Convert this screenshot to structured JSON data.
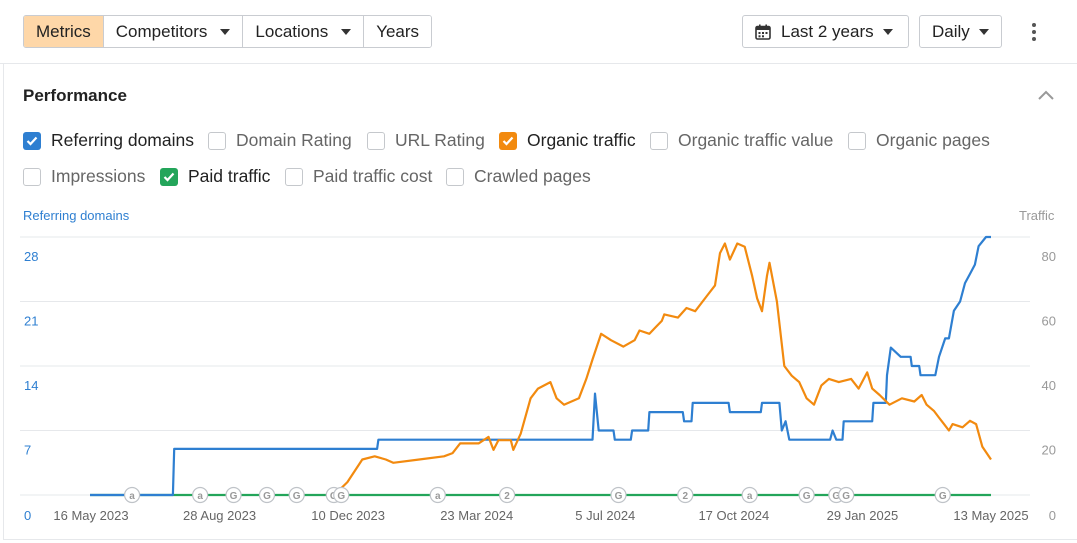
{
  "toolbar": {
    "tabs": [
      {
        "label": "Metrics",
        "active": true,
        "dropdown": false
      },
      {
        "label": "Competitors",
        "active": false,
        "dropdown": true
      },
      {
        "label": "Locations",
        "active": false,
        "dropdown": true
      },
      {
        "label": "Years",
        "active": false,
        "dropdown": false
      }
    ],
    "date_range": "Last 2 years",
    "granularity": "Daily",
    "more_icon": "kebab-menu-icon"
  },
  "section": {
    "title": "Performance",
    "collapse_icon": "chevron-up-icon"
  },
  "metrics": [
    {
      "label": "Referring domains",
      "checked": true,
      "color": "#2e7fd1"
    },
    {
      "label": "Domain Rating",
      "checked": false
    },
    {
      "label": "URL Rating",
      "checked": false
    },
    {
      "label": "Organic traffic",
      "checked": true,
      "color": "#f28a0f"
    },
    {
      "label": "Organic traffic value",
      "checked": false
    },
    {
      "label": "Organic pages",
      "checked": false
    },
    {
      "label": "Impressions",
      "checked": false
    },
    {
      "label": "Paid traffic",
      "checked": true,
      "color": "#23a55a"
    },
    {
      "label": "Paid traffic cost",
      "checked": false
    },
    {
      "label": "Crawled pages",
      "checked": false
    }
  ],
  "chart_data": {
    "type": "line",
    "left_axis_label": "Referring domains",
    "right_axis_label": "Traffic",
    "left_ticks": [
      0,
      7,
      14,
      21,
      28
    ],
    "right_ticks": [
      0,
      20,
      40,
      60,
      80
    ],
    "left_ylim": [
      0,
      28
    ],
    "right_ylim": [
      0,
      80
    ],
    "x_tick_labels": [
      "16 May 2023",
      "28 Aug 2023",
      "10 Dec 2023",
      "23 Mar 2024",
      "5 Jul 2024",
      "17 Oct 2024",
      "29 Jan 2025",
      "13 May 2025"
    ],
    "x_range": [
      "2023-05-16",
      "2025-05-13"
    ],
    "grid": true,
    "colors": {
      "referring_domains": "#2e7fd1",
      "organic_traffic": "#f28a0f",
      "paid_traffic": "#23a55a",
      "left_axis": "#2e7fd1",
      "right_axis": "#999999"
    },
    "series": [
      {
        "name": "Referring domains",
        "axis": "left",
        "color": "#2e7fd1",
        "points": [
          [
            "2023-05-16",
            0
          ],
          [
            "2023-07-22",
            0
          ],
          [
            "2023-07-23",
            5
          ],
          [
            "2024-01-03",
            5
          ],
          [
            "2024-01-04",
            6
          ],
          [
            "2024-06-25",
            6
          ],
          [
            "2024-06-27",
            11
          ],
          [
            "2024-06-30",
            7
          ],
          [
            "2024-07-12",
            7
          ],
          [
            "2024-07-13",
            6
          ],
          [
            "2024-07-26",
            6
          ],
          [
            "2024-07-27",
            7
          ],
          [
            "2024-08-09",
            7
          ],
          [
            "2024-08-10",
            9
          ],
          [
            "2024-09-06",
            9
          ],
          [
            "2024-09-07",
            8
          ],
          [
            "2024-09-13",
            8
          ],
          [
            "2024-09-14",
            10
          ],
          [
            "2024-10-13",
            10
          ],
          [
            "2024-10-14",
            9
          ],
          [
            "2024-11-08",
            9
          ],
          [
            "2024-11-09",
            10
          ],
          [
            "2024-11-23",
            10
          ],
          [
            "2024-11-25",
            7
          ],
          [
            "2024-11-28",
            8
          ],
          [
            "2024-12-01",
            6
          ],
          [
            "2025-01-03",
            6
          ],
          [
            "2025-01-05",
            7
          ],
          [
            "2025-01-08",
            6
          ],
          [
            "2025-01-13",
            6
          ],
          [
            "2025-01-14",
            8
          ],
          [
            "2025-02-06",
            8
          ],
          [
            "2025-02-07",
            10
          ],
          [
            "2025-02-17",
            10
          ],
          [
            "2025-02-18",
            13
          ],
          [
            "2025-02-21",
            16
          ],
          [
            "2025-03-01",
            15
          ],
          [
            "2025-03-09",
            15
          ],
          [
            "2025-03-10",
            14
          ],
          [
            "2025-03-16",
            14
          ],
          [
            "2025-03-17",
            13
          ],
          [
            "2025-03-29",
            13
          ],
          [
            "2025-04-01",
            15
          ],
          [
            "2025-04-06",
            17
          ],
          [
            "2025-04-09",
            17
          ],
          [
            "2025-04-13",
            20
          ],
          [
            "2025-04-18",
            21
          ],
          [
            "2025-04-22",
            23
          ],
          [
            "2025-04-26",
            24
          ],
          [
            "2025-04-30",
            25
          ],
          [
            "2025-05-03",
            27
          ],
          [
            "2025-05-09",
            28
          ],
          [
            "2025-05-13",
            28
          ]
        ]
      },
      {
        "name": "Organic traffic",
        "axis": "right",
        "color": "#f28a0f",
        "points": [
          [
            "2023-11-24",
            0
          ],
          [
            "2023-12-02",
            1
          ],
          [
            "2023-12-10",
            4
          ],
          [
            "2023-12-22",
            11
          ],
          [
            "2024-01-01",
            12
          ],
          [
            "2024-01-10",
            11
          ],
          [
            "2024-01-16",
            10
          ],
          [
            "2024-02-06",
            11
          ],
          [
            "2024-02-26",
            12
          ],
          [
            "2024-03-04",
            13
          ],
          [
            "2024-03-10",
            16
          ],
          [
            "2024-03-25",
            16
          ],
          [
            "2024-04-02",
            18
          ],
          [
            "2024-04-06",
            14
          ],
          [
            "2024-04-10",
            17
          ],
          [
            "2024-04-20",
            17
          ],
          [
            "2024-04-22",
            14
          ],
          [
            "2024-04-28",
            19
          ],
          [
            "2024-05-06",
            30
          ],
          [
            "2024-05-12",
            33
          ],
          [
            "2024-05-22",
            35
          ],
          [
            "2024-05-27",
            30
          ],
          [
            "2024-06-02",
            28
          ],
          [
            "2024-06-14",
            30
          ],
          [
            "2024-06-20",
            36
          ],
          [
            "2024-06-25",
            42
          ],
          [
            "2024-07-02",
            50
          ],
          [
            "2024-07-10",
            48
          ],
          [
            "2024-07-20",
            46
          ],
          [
            "2024-07-29",
            48
          ],
          [
            "2024-08-02",
            51
          ],
          [
            "2024-08-10",
            50
          ],
          [
            "2024-08-15",
            52
          ],
          [
            "2024-08-20",
            54
          ],
          [
            "2024-08-22",
            56
          ],
          [
            "2024-09-02",
            55
          ],
          [
            "2024-09-09",
            58
          ],
          [
            "2024-09-16",
            57
          ],
          [
            "2024-09-26",
            62
          ],
          [
            "2024-10-02",
            65
          ],
          [
            "2024-10-06",
            75
          ],
          [
            "2024-10-10",
            78
          ],
          [
            "2024-10-14",
            73
          ],
          [
            "2024-10-20",
            78
          ],
          [
            "2024-10-26",
            77
          ],
          [
            "2024-11-01",
            68
          ],
          [
            "2024-11-05",
            61
          ],
          [
            "2024-11-09",
            57
          ],
          [
            "2024-11-13",
            68
          ],
          [
            "2024-11-15",
            72
          ],
          [
            "2024-11-21",
            60
          ],
          [
            "2024-11-27",
            40
          ],
          [
            "2024-12-03",
            37
          ],
          [
            "2024-12-09",
            35
          ],
          [
            "2024-12-15",
            30
          ],
          [
            "2024-12-21",
            28
          ],
          [
            "2024-12-27",
            34
          ],
          [
            "2025-01-02",
            36
          ],
          [
            "2025-01-10",
            35
          ],
          [
            "2025-01-20",
            36
          ],
          [
            "2025-01-26",
            33
          ],
          [
            "2025-02-02",
            38
          ],
          [
            "2025-02-06",
            33
          ],
          [
            "2025-02-12",
            31
          ],
          [
            "2025-02-20",
            28
          ],
          [
            "2025-03-02",
            30
          ],
          [
            "2025-03-12",
            29
          ],
          [
            "2025-03-18",
            31
          ],
          [
            "2025-03-22",
            28
          ],
          [
            "2025-03-28",
            26
          ],
          [
            "2025-04-01",
            24
          ],
          [
            "2025-04-05",
            22
          ],
          [
            "2025-04-09",
            20
          ],
          [
            "2025-04-12",
            22
          ],
          [
            "2025-04-20",
            21
          ],
          [
            "2025-04-26",
            23
          ],
          [
            "2025-05-01",
            22
          ],
          [
            "2025-05-06",
            15
          ],
          [
            "2025-05-13",
            11
          ]
        ]
      },
      {
        "name": "Paid traffic",
        "axis": "right",
        "color": "#23a55a",
        "points": [
          [
            "2023-05-16",
            0
          ],
          [
            "2025-05-13",
            0
          ]
        ]
      }
    ],
    "annotations": [
      {
        "date": "2023-06-19",
        "label": "a"
      },
      {
        "date": "2023-08-13",
        "label": "a"
      },
      {
        "date": "2023-09-09",
        "label": "G"
      },
      {
        "date": "2023-10-06",
        "label": "G"
      },
      {
        "date": "2023-10-30",
        "label": "G"
      },
      {
        "date": "2023-11-29",
        "label": "G"
      },
      {
        "date": "2023-12-05",
        "label": "G"
      },
      {
        "date": "2024-02-21",
        "label": "a"
      },
      {
        "date": "2024-04-17",
        "label": "2"
      },
      {
        "date": "2024-07-16",
        "label": "G"
      },
      {
        "date": "2024-09-08",
        "label": "2"
      },
      {
        "date": "2024-10-30",
        "label": "a"
      },
      {
        "date": "2024-12-15",
        "label": "G"
      },
      {
        "date": "2025-01-08",
        "label": "G"
      },
      {
        "date": "2025-01-16",
        "label": "G"
      },
      {
        "date": "2025-04-04",
        "label": "G"
      }
    ]
  }
}
